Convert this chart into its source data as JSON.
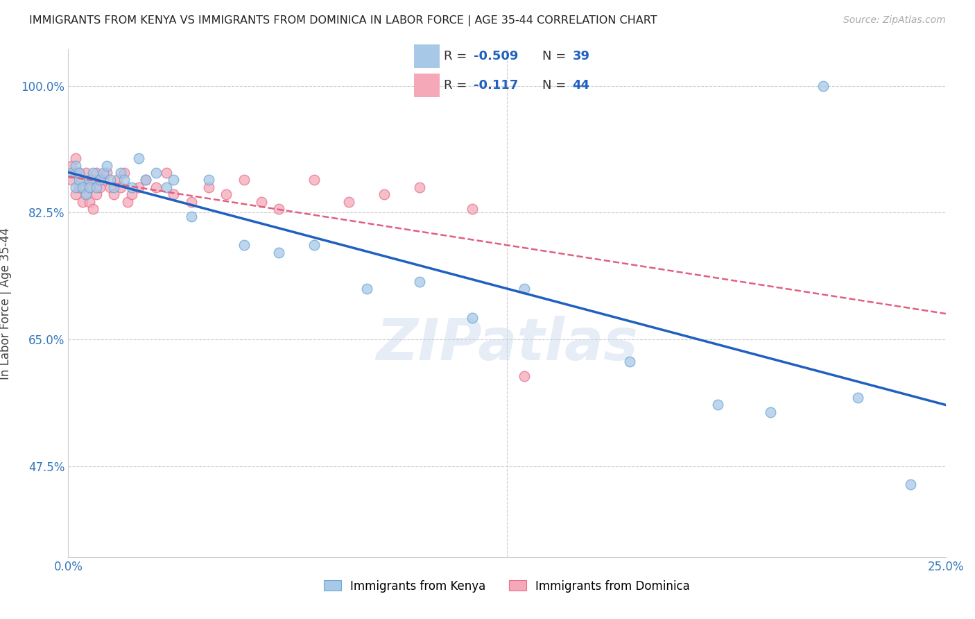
{
  "title": "IMMIGRANTS FROM KENYA VS IMMIGRANTS FROM DOMINICA IN LABOR FORCE | AGE 35-44 CORRELATION CHART",
  "source_text": "Source: ZipAtlas.com",
  "ylabel": "In Labor Force | Age 35-44",
  "xlim": [
    0.0,
    0.25
  ],
  "ylim": [
    0.35,
    1.05
  ],
  "xticks": [
    0.0,
    0.05,
    0.1,
    0.15,
    0.2,
    0.25
  ],
  "xticklabels": [
    "0.0%",
    "",
    "",
    "",
    "",
    "25.0%"
  ],
  "yticks": [
    0.475,
    0.65,
    0.825,
    1.0
  ],
  "yticklabels": [
    "47.5%",
    "65.0%",
    "82.5%",
    "100.0%"
  ],
  "kenya_R": -0.509,
  "kenya_N": 39,
  "dominica_R": -0.117,
  "dominica_N": 44,
  "kenya_color": "#a8c8e8",
  "dominica_color": "#f4a8b8",
  "kenya_edge_color": "#6aaad4",
  "dominica_edge_color": "#e87090",
  "kenya_line_color": "#2060c0",
  "dominica_line_color": "#e06080",
  "watermark": "ZIPatlas",
  "kenya_x": [
    0.001,
    0.002,
    0.002,
    0.003,
    0.003,
    0.004,
    0.005,
    0.006,
    0.006,
    0.007,
    0.008,
    0.009,
    0.01,
    0.011,
    0.012,
    0.013,
    0.015,
    0.016,
    0.018,
    0.02,
    0.022,
    0.025,
    0.028,
    0.03,
    0.035,
    0.04,
    0.05,
    0.06,
    0.07,
    0.085,
    0.1,
    0.115,
    0.13,
    0.16,
    0.185,
    0.2,
    0.215,
    0.225,
    0.24
  ],
  "kenya_y": [
    0.88,
    0.86,
    0.89,
    0.87,
    0.88,
    0.86,
    0.85,
    0.87,
    0.86,
    0.88,
    0.86,
    0.87,
    0.88,
    0.89,
    0.87,
    0.86,
    0.88,
    0.87,
    0.86,
    0.9,
    0.87,
    0.88,
    0.86,
    0.87,
    0.82,
    0.87,
    0.78,
    0.77,
    0.78,
    0.72,
    0.73,
    0.68,
    0.72,
    0.62,
    0.56,
    0.55,
    1.0,
    0.57,
    0.45
  ],
  "dominica_x": [
    0.001,
    0.001,
    0.002,
    0.002,
    0.002,
    0.003,
    0.003,
    0.004,
    0.004,
    0.005,
    0.005,
    0.006,
    0.006,
    0.007,
    0.007,
    0.008,
    0.008,
    0.009,
    0.01,
    0.011,
    0.012,
    0.013,
    0.014,
    0.015,
    0.016,
    0.017,
    0.018,
    0.02,
    0.022,
    0.025,
    0.028,
    0.03,
    0.035,
    0.04,
    0.045,
    0.05,
    0.055,
    0.06,
    0.07,
    0.08,
    0.09,
    0.1,
    0.115,
    0.13
  ],
  "dominica_y": [
    0.87,
    0.89,
    0.85,
    0.88,
    0.9,
    0.86,
    0.88,
    0.84,
    0.87,
    0.85,
    0.88,
    0.84,
    0.86,
    0.83,
    0.87,
    0.85,
    0.88,
    0.86,
    0.87,
    0.88,
    0.86,
    0.85,
    0.87,
    0.86,
    0.88,
    0.84,
    0.85,
    0.86,
    0.87,
    0.86,
    0.88,
    0.85,
    0.84,
    0.86,
    0.85,
    0.87,
    0.84,
    0.83,
    0.87,
    0.84,
    0.85,
    0.86,
    0.83,
    0.6
  ]
}
